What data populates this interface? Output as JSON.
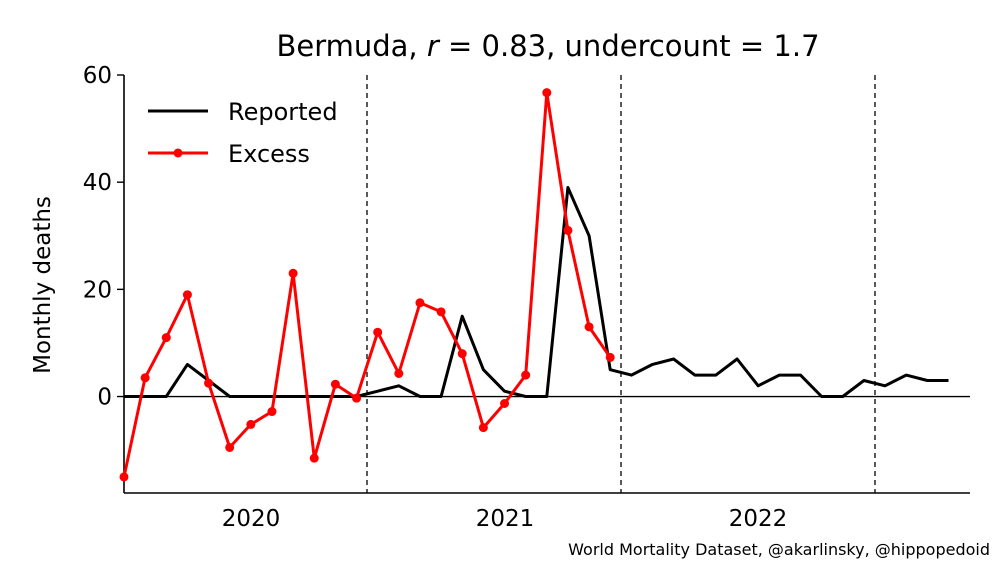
{
  "chart_data": {
    "type": "line",
    "title_prefix": "Bermuda, ",
    "title_r_symbol": "r",
    "title_r_value": " = 0.83, undercount = 1.7",
    "ylabel": "Monthly deaths",
    "xlabel": "",
    "ylim": [
      -18,
      60
    ],
    "y_ticks": [
      0,
      20,
      40,
      60
    ],
    "year_ticks": [
      "2020",
      "2021",
      "2022"
    ],
    "legend_position": "top-left",
    "grid": false,
    "vertical_dashed_lines": [
      "mid-2020",
      "mid-2021",
      "mid-2022"
    ],
    "series": [
      {
        "name": "Reported",
        "color": "#000000",
        "marker": false,
        "values": [
          0,
          0,
          0,
          6,
          3,
          0,
          0,
          0,
          0,
          0,
          0,
          0,
          1,
          2,
          0,
          0,
          15,
          5,
          1,
          0,
          0,
          39,
          30,
          5,
          4,
          6,
          7,
          4,
          4,
          7,
          2,
          4,
          4,
          0,
          0,
          3,
          2,
          4,
          3,
          3
        ]
      },
      {
        "name": "Excess",
        "color": "#ff0000",
        "marker": true,
        "values": [
          -15,
          3.5,
          11,
          19,
          2.5,
          -9.5,
          -5.2,
          -2.8,
          23,
          -11.5,
          2.3,
          -0.3,
          12,
          4.3,
          17.5,
          15.8,
          8,
          -5.8,
          -1.3,
          4,
          56.7,
          31,
          13,
          7.3
        ]
      }
    ]
  },
  "source_note": "World Mortality Dataset, @akarlinsky, @hippopedoid"
}
